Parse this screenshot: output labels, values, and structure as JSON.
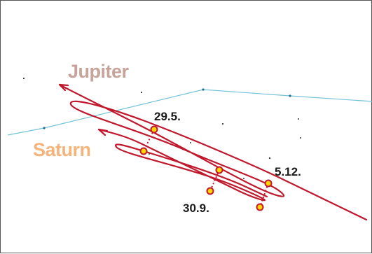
{
  "planets": {
    "jupiter": {
      "name": "Jupiter",
      "color": "#c7a39b"
    },
    "saturn": {
      "name": "Saturn",
      "color": "#f4b47c"
    }
  },
  "dates": {
    "d1": "29.5.",
    "d2": "5.12.",
    "d3": "30.9."
  },
  "colors": {
    "path": "#c0182d",
    "ecliptic": "#73c3db",
    "marker_fill": "#ffd400",
    "star": "#333333"
  }
}
